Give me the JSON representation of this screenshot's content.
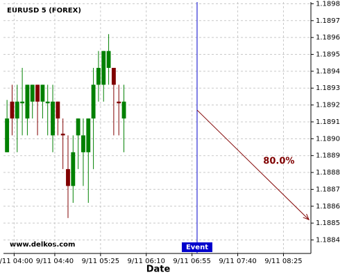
{
  "chart_data": {
    "type": "candlestick",
    "title": "EURUSD 5 (FOREX)",
    "watermark": "www.delkos.com",
    "x_label": "Date",
    "up_color": "#008000",
    "down_color": "#800000",
    "grid": true,
    "candles": [
      {
        "open": 1.18892,
        "high": 1.18923,
        "low": 1.18892,
        "close": 1.18912
      },
      {
        "open": 1.18922,
        "high": 1.18932,
        "low": 1.18902,
        "close": 1.18912
      },
      {
        "open": 1.18912,
        "high": 1.18932,
        "low": 1.18892,
        "close": 1.18922
      },
      {
        "open": 1.18921,
        "high": 1.18942,
        "low": 1.18902,
        "close": 1.18922
      },
      {
        "open": 1.18912,
        "high": 1.18932,
        "low": 1.18902,
        "close": 1.18932
      },
      {
        "open": 1.18922,
        "high": 1.18932,
        "low": 1.18912,
        "close": 1.18932
      },
      {
        "open": 1.18932,
        "high": 1.18932,
        "low": 1.18902,
        "close": 1.18922
      },
      {
        "open": 1.18922,
        "high": 1.18932,
        "low": 1.18912,
        "close": 1.18932
      },
      {
        "open": 1.18921,
        "high": 1.18932,
        "low": 1.18902,
        "close": 1.18922
      },
      {
        "open": 1.18902,
        "high": 1.18932,
        "low": 1.18892,
        "close": 1.18922
      },
      {
        "open": 1.18922,
        "high": 1.18922,
        "low": 1.18902,
        "close": 1.18912
      },
      {
        "open": 1.18903,
        "high": 1.18912,
        "low": 1.18882,
        "close": 1.18902
      },
      {
        "open": 1.18882,
        "high": 1.18902,
        "low": 1.18853,
        "close": 1.18872
      },
      {
        "open": 1.18872,
        "high": 1.18902,
        "low": 1.18862,
        "close": 1.18892
      },
      {
        "open": 1.18902,
        "high": 1.18912,
        "low": 1.18882,
        "close": 1.18912
      },
      {
        "open": 1.18892,
        "high": 1.18912,
        "low": 1.18872,
        "close": 1.18902
      },
      {
        "open": 1.18892,
        "high": 1.18912,
        "low": 1.18862,
        "close": 1.18912
      },
      {
        "open": 1.18912,
        "high": 1.18942,
        "low": 1.18882,
        "close": 1.18932
      },
      {
        "open": 1.18932,
        "high": 1.18952,
        "low": 1.18922,
        "close": 1.18942
      },
      {
        "open": 1.18932,
        "high": 1.18952,
        "low": 1.18922,
        "close": 1.18952
      },
      {
        "open": 1.18942,
        "high": 1.18962,
        "low": 1.18932,
        "close": 1.18952
      },
      {
        "open": 1.18942,
        "high": 1.18942,
        "low": 1.18902,
        "close": 1.18932
      },
      {
        "open": 1.18922,
        "high": 1.18932,
        "low": 1.18902,
        "close": 1.18921
      },
      {
        "open": 1.18912,
        "high": 1.18932,
        "low": 1.18892,
        "close": 1.18922
      }
    ],
    "xlim": [
      -0.7,
      59.8
    ],
    "xticks": [
      {
        "value": 1.4,
        "label": "9/11 04:00"
      },
      {
        "value": 9.4,
        "label": "9/11 04:40"
      },
      {
        "value": 18.4,
        "label": "9/11 05:25"
      },
      {
        "value": 27.4,
        "label": "9/11 06:10"
      },
      {
        "value": 36.4,
        "label": "9/11 06:55"
      },
      {
        "value": 45.4,
        "label": "9/11 07:40"
      },
      {
        "value": 54.4,
        "label": "9/11 08:25"
      }
    ],
    "ylim": [
      1.18832,
      1.18981
    ],
    "yticks": [
      1.1884,
      1.1885,
      1.1886,
      1.1887,
      1.1888,
      1.1889,
      {
        "value": 1.189,
        "label": "1.1890"
      },
      1.1891,
      1.1892,
      1.1893,
      1.1894,
      1.1895,
      1.1896,
      1.1897,
      1.1898
    ],
    "event": {
      "label": "Event",
      "x": 37.4,
      "color": "#0000cc"
    },
    "forecast": {
      "label": "80.0%",
      "x": [
        37.4,
        59.4
      ],
      "y": [
        1.18917,
        1.18852
      ],
      "color": "#800000"
    }
  }
}
